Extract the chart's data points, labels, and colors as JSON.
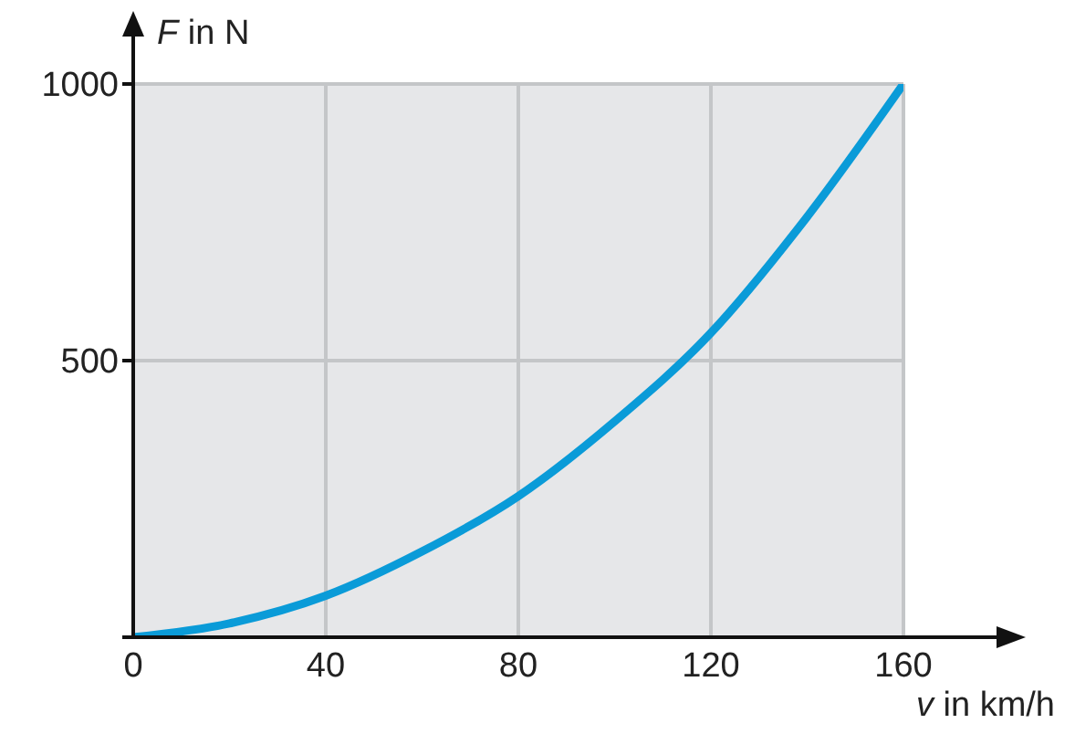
{
  "chart_data": {
    "type": "line",
    "xlabel": "v in km/h",
    "ylabel": "F in N",
    "x": [
      0,
      20,
      40,
      60,
      80,
      100,
      120,
      140,
      160
    ],
    "series": [
      {
        "color": "#0a9bd8",
        "values": [
          0,
          25,
          75,
          155,
          255,
          390,
          550,
          760,
          1000
        ]
      }
    ],
    "xlim": [
      0,
      160
    ],
    "ylim": [
      0,
      1000
    ],
    "xticks": [
      0,
      40,
      80,
      120,
      160
    ],
    "yticks": [
      {
        "value": 0,
        "label": null
      },
      500,
      1000
    ],
    "grid": true,
    "legend": false,
    "marker": "none",
    "line_style": "solid"
  }
}
